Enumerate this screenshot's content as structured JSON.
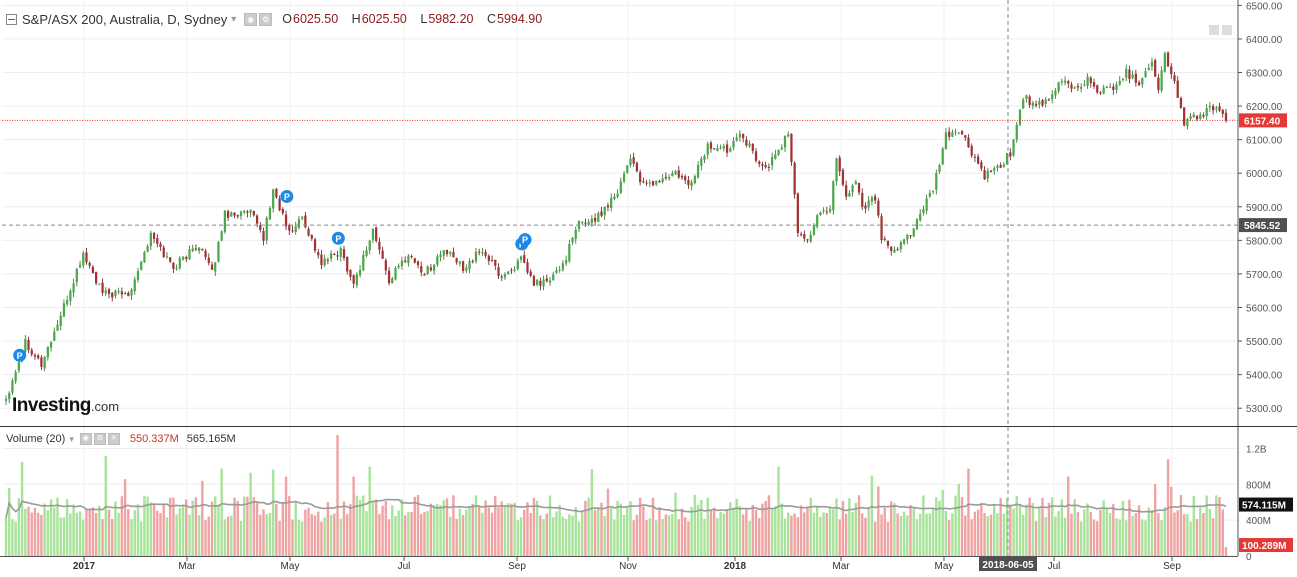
{
  "header": {
    "title": "S&P/ASX 200, Australia, D, Sydney",
    "ohlc": [
      {
        "key": "O",
        "value": "6025.50"
      },
      {
        "key": "H",
        "value": "6025.50"
      },
      {
        "key": "L",
        "value": "5982.20"
      },
      {
        "key": "C",
        "value": "5994.90"
      }
    ]
  },
  "volume_header": {
    "label": "Volume (20)",
    "value1": "550.337M",
    "value2": "565.165M"
  },
  "logo": {
    "main": "Investing",
    "suffix": ".com"
  },
  "colors": {
    "up": "#4aa84a",
    "down": "#a33232",
    "vol_up": "#a8e39a",
    "vol_down": "#f0a3a3",
    "ma": "#9a9a9a",
    "last_price": "#e53935",
    "crosshair": "#888888"
  },
  "icons": {
    "collapse": "collapse-square-icon",
    "settings": "gear-icon",
    "dividend": "dividend-marker-icon"
  },
  "chart_data": {
    "type": "candlestick",
    "price_axis": {
      "ticks": [
        "5300.00",
        "5400.00",
        "5500.00",
        "5600.00",
        "5700.00",
        "5800.00",
        "5900.00",
        "6000.00",
        "6100.00",
        "6200.00",
        "6300.00",
        "6400.00",
        "6500.00"
      ],
      "range": [
        5250,
        6510
      ]
    },
    "volume_axis": {
      "ticks": [
        "0",
        "400M",
        "800M",
        "1.2B"
      ],
      "range": [
        0,
        1350
      ]
    },
    "x_labels": [
      "2017",
      "Mar",
      "May",
      "Jul",
      "Sep",
      "Nov",
      "2018",
      "Mar",
      "May",
      "Jul",
      "Sep"
    ],
    "crosshair": {
      "date_label": "2018-06-05",
      "price_label": "5845.52",
      "price": 5845.52
    },
    "last_price": {
      "label": "6157.40",
      "price": 6157.4
    },
    "volume_labels": {
      "ma": "574.115M",
      "ma_value": 574,
      "last": "100.289M",
      "last_value": 100
    },
    "series_keypoints": [
      {
        "bar": 0,
        "close": 5330
      },
      {
        "bar": 6,
        "close": 5500
      },
      {
        "bar": 11,
        "close": 5430
      },
      {
        "bar": 18,
        "close": 5600
      },
      {
        "bar": 24,
        "close": 5760
      },
      {
        "bar": 30,
        "close": 5640
      },
      {
        "bar": 38,
        "close": 5640
      },
      {
        "bar": 45,
        "close": 5815
      },
      {
        "bar": 52,
        "close": 5720
      },
      {
        "bar": 60,
        "close": 5790
      },
      {
        "bar": 64,
        "close": 5700
      },
      {
        "bar": 68,
        "close": 5880
      },
      {
        "bar": 76,
        "close": 5880
      },
      {
        "bar": 80,
        "close": 5810
      },
      {
        "bar": 83,
        "close": 5950
      },
      {
        "bar": 88,
        "close": 5820
      },
      {
        "bar": 92,
        "close": 5870
      },
      {
        "bar": 98,
        "close": 5730
      },
      {
        "bar": 104,
        "close": 5770
      },
      {
        "bar": 108,
        "close": 5670
      },
      {
        "bar": 114,
        "close": 5830
      },
      {
        "bar": 119,
        "close": 5680
      },
      {
        "bar": 125,
        "close": 5760
      },
      {
        "bar": 130,
        "close": 5700
      },
      {
        "bar": 136,
        "close": 5770
      },
      {
        "bar": 142,
        "close": 5720
      },
      {
        "bar": 148,
        "close": 5770
      },
      {
        "bar": 154,
        "close": 5690
      },
      {
        "bar": 160,
        "close": 5740
      },
      {
        "bar": 164,
        "close": 5670
      },
      {
        "bar": 169,
        "close": 5680
      },
      {
        "bar": 173,
        "close": 5730
      },
      {
        "bar": 178,
        "close": 5850
      },
      {
        "bar": 184,
        "close": 5870
      },
      {
        "bar": 190,
        "close": 5950
      },
      {
        "bar": 194,
        "close": 6050
      },
      {
        "bar": 198,
        "close": 5960
      },
      {
        "bar": 204,
        "close": 5980
      },
      {
        "bar": 208,
        "close": 6000
      },
      {
        "bar": 212,
        "close": 5960
      },
      {
        "bar": 218,
        "close": 6080
      },
      {
        "bar": 224,
        "close": 6070
      },
      {
        "bar": 228,
        "close": 6130
      },
      {
        "bar": 232,
        "close": 6060
      },
      {
        "bar": 236,
        "close": 6010
      },
      {
        "bar": 240,
        "close": 6070
      },
      {
        "bar": 243,
        "close": 6120
      },
      {
        "bar": 246,
        "close": 5830
      },
      {
        "bar": 249,
        "close": 5800
      },
      {
        "bar": 252,
        "close": 5870
      },
      {
        "bar": 256,
        "close": 5900
      },
      {
        "bar": 258,
        "close": 6050
      },
      {
        "bar": 261,
        "close": 5930
      },
      {
        "bar": 264,
        "close": 5980
      },
      {
        "bar": 266,
        "close": 5900
      },
      {
        "bar": 270,
        "close": 5930
      },
      {
        "bar": 272,
        "close": 5800
      },
      {
        "bar": 276,
        "close": 5760
      },
      {
        "bar": 282,
        "close": 5840
      },
      {
        "bar": 288,
        "close": 5950
      },
      {
        "bar": 292,
        "close": 6110
      },
      {
        "bar": 296,
        "close": 6130
      },
      {
        "bar": 300,
        "close": 6060
      },
      {
        "bar": 304,
        "close": 5990
      },
      {
        "bar": 308,
        "close": 6010
      },
      {
        "bar": 312,
        "close": 6060
      },
      {
        "bar": 316,
        "close": 6230
      },
      {
        "bar": 320,
        "close": 6200
      },
      {
        "bar": 324,
        "close": 6210
      },
      {
        "bar": 328,
        "close": 6280
      },
      {
        "bar": 332,
        "close": 6250
      },
      {
        "bar": 336,
        "close": 6280
      },
      {
        "bar": 340,
        "close": 6240
      },
      {
        "bar": 344,
        "close": 6260
      },
      {
        "bar": 348,
        "close": 6300
      },
      {
        "bar": 352,
        "close": 6270
      },
      {
        "bar": 356,
        "close": 6340
      },
      {
        "bar": 358,
        "close": 6250
      },
      {
        "bar": 360,
        "close": 6350
      },
      {
        "bar": 363,
        "close": 6270
      },
      {
        "bar": 366,
        "close": 6150
      },
      {
        "bar": 368,
        "close": 6160
      },
      {
        "bar": 372,
        "close": 6180
      },
      {
        "bar": 376,
        "close": 6200
      },
      {
        "bar": 379,
        "close": 6157.4
      }
    ],
    "dividend_markers": [
      {
        "bar": 3,
        "label": "P",
        "sub": "I"
      },
      {
        "bar": 86,
        "label": "P"
      },
      {
        "bar": 102,
        "label": "P"
      },
      {
        "bar": 159,
        "label": "P",
        "sub": "I"
      },
      {
        "bar": 160,
        "label": "P"
      }
    ]
  }
}
